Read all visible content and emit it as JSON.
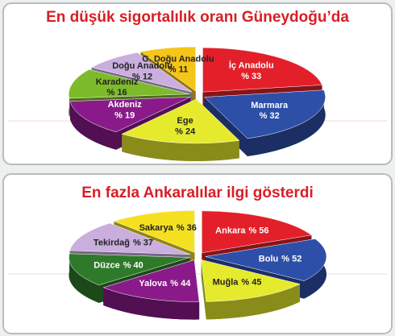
{
  "chart_data": [
    {
      "type": "pie",
      "title": "En düşük sigortalılık oranı Güneydoğu’da",
      "categories": [
        "İç Anadolu",
        "Marmara",
        "Ege",
        "Akdeniz",
        "Karadeniz",
        "Doğu Anadolu",
        "G. Doğu Anadolu"
      ],
      "values": [
        33,
        32,
        24,
        19,
        16,
        12,
        11
      ],
      "value_labels": [
        "% 33",
        "% 32",
        "% 24",
        "% 19",
        "% 16",
        "% 12",
        "% 11"
      ],
      "colors": [
        "#e3202a",
        "#2e4fa8",
        "#e6ea2c",
        "#8a1a8a",
        "#7dbb2a",
        "#c9aede",
        "#f5c518"
      ]
    },
    {
      "type": "pie",
      "title": "En fazla Ankaralılar ilgi gösterdi",
      "categories": [
        "Ankara",
        "Bolu",
        "Muğla",
        "Yalova",
        "Düzce",
        "Tekirdağ",
        "Sakarya"
      ],
      "values": [
        56,
        52,
        45,
        44,
        40,
        37,
        36
      ],
      "value_labels": [
        "% 56",
        "% 52",
        "% 45",
        "% 44",
        "% 40",
        "% 37",
        "% 36"
      ],
      "colors": [
        "#e3202a",
        "#2e4fa8",
        "#e6ea2c",
        "#8a1a8a",
        "#2f7a2a",
        "#c9aede",
        "#f5e020"
      ]
    }
  ]
}
